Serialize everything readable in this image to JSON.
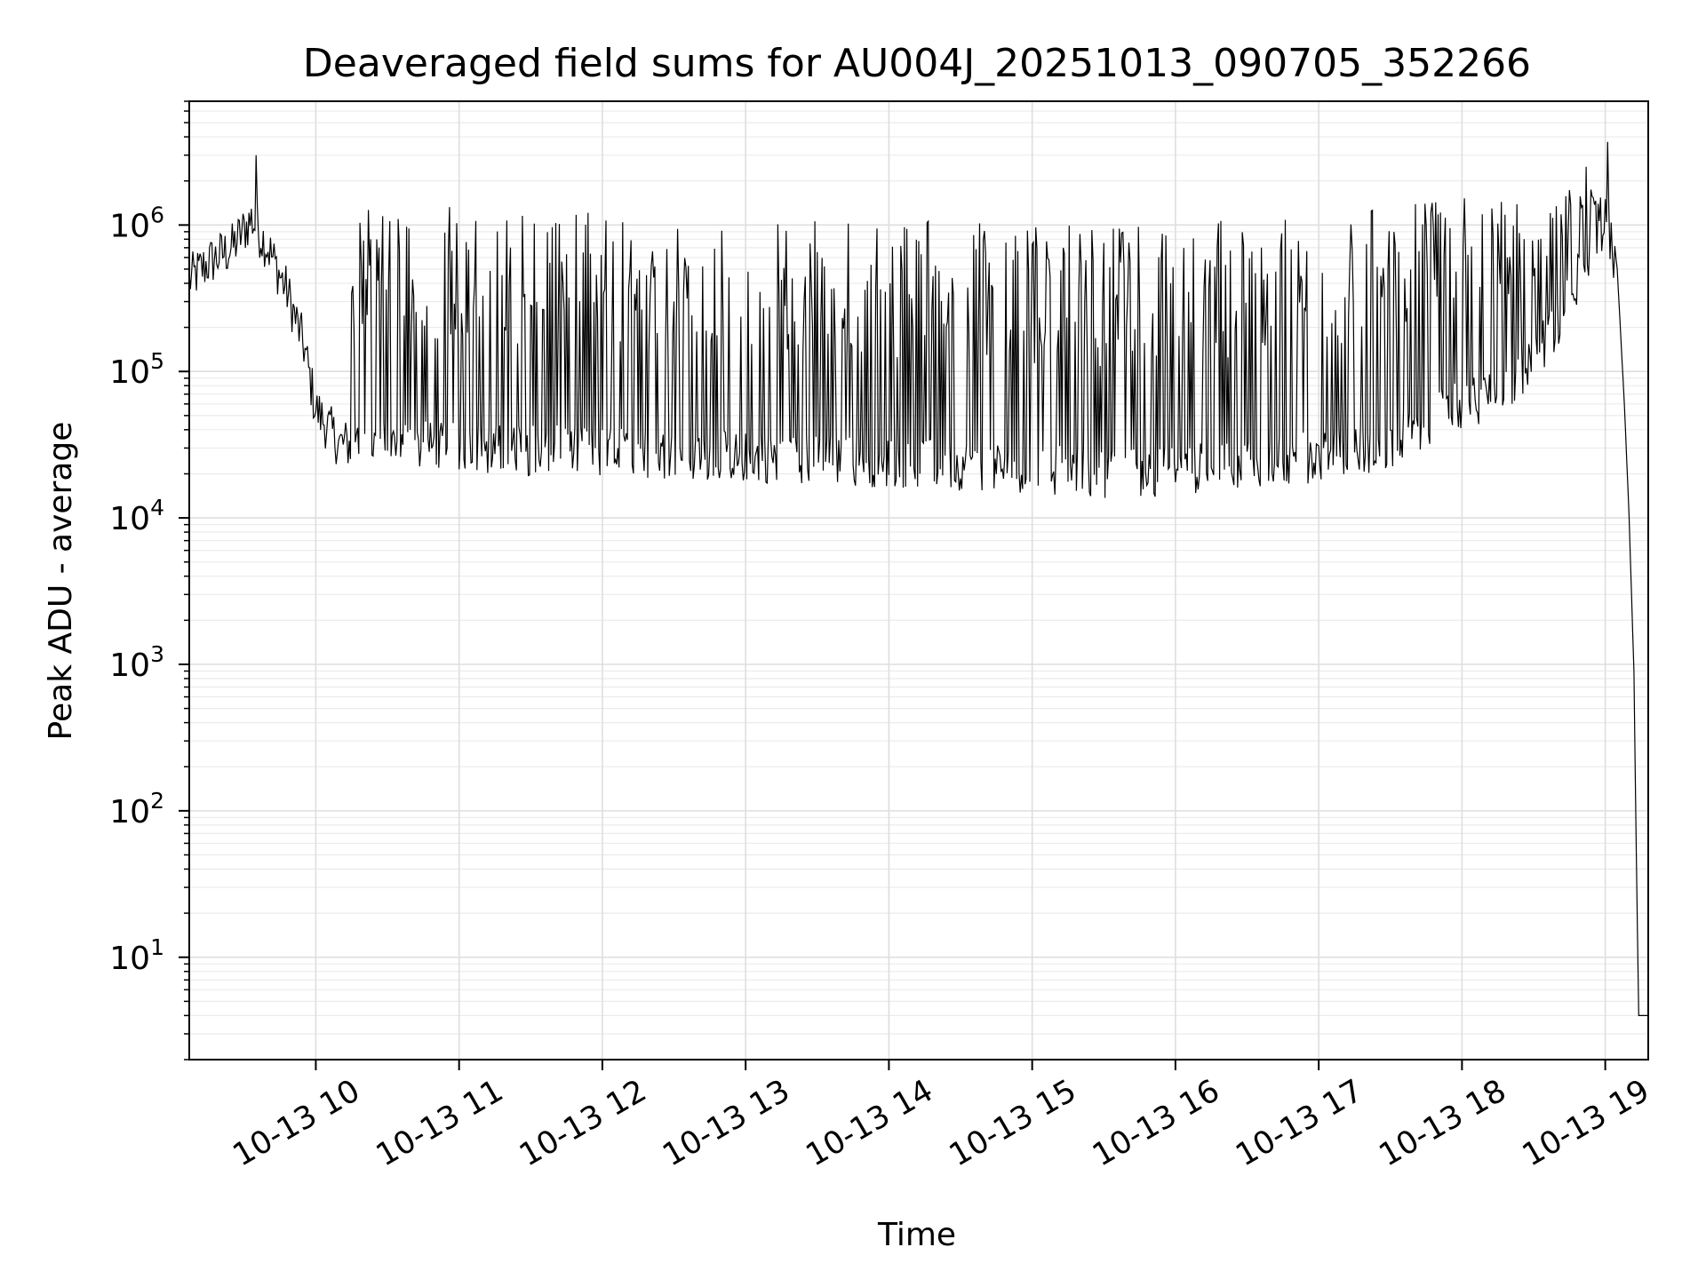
{
  "chart_data": {
    "type": "line",
    "title": "Deaveraged field sums for AU004J_20251013_090705_352266",
    "xlabel": "Time",
    "ylabel": "Peak ADU - average",
    "yscale": "log",
    "ylim": [
      2,
      7000000
    ],
    "xlim": [
      "2025-10-13 09:07",
      "2025-10-13 19:18"
    ],
    "grid": true,
    "line_color": "#000000",
    "xticks": [
      {
        "label": "10-13 10",
        "time": "2025-10-13 10:00"
      },
      {
        "label": "10-13 11",
        "time": "2025-10-13 11:00"
      },
      {
        "label": "10-13 12",
        "time": "2025-10-13 12:00"
      },
      {
        "label": "10-13 13",
        "time": "2025-10-13 13:00"
      },
      {
        "label": "10-13 14",
        "time": "2025-10-13 14:00"
      },
      {
        "label": "10-13 15",
        "time": "2025-10-13 15:00"
      },
      {
        "label": "10-13 16",
        "time": "2025-10-13 16:00"
      },
      {
        "label": "10-13 17",
        "time": "2025-10-13 17:00"
      },
      {
        "label": "10-13 18",
        "time": "2025-10-13 18:00"
      },
      {
        "label": "10-13 19",
        "time": "2025-10-13 19:00"
      }
    ],
    "yticks": [
      {
        "base": "10",
        "exp": "1",
        "value": 10
      },
      {
        "base": "10",
        "exp": "2",
        "value": 100
      },
      {
        "base": "10",
        "exp": "3",
        "value": 1000
      },
      {
        "base": "10",
        "exp": "4",
        "value": 10000
      },
      {
        "base": "10",
        "exp": "5",
        "value": 100000
      },
      {
        "base": "10",
        "exp": "6",
        "value": 1000000
      }
    ],
    "series": [
      {
        "baseline": [
          [
            "2025-10-13 09:07",
            420000
          ],
          [
            "2025-10-13 09:15",
            550000
          ],
          [
            "2025-10-13 09:25",
            700000
          ],
          [
            "2025-10-13 09:33",
            1100000
          ],
          [
            "2025-10-13 09:40",
            700000
          ],
          [
            "2025-10-13 09:48",
            350000
          ],
          [
            "2025-10-13 09:55",
            150000
          ],
          [
            "2025-10-13 10:00",
            55000
          ],
          [
            "2025-10-13 10:10",
            32000
          ],
          [
            "2025-10-13 11:00",
            30000
          ],
          [
            "2025-10-13 12:00",
            28000
          ],
          [
            "2025-10-13 13:00",
            26000
          ],
          [
            "2025-10-13 14:00",
            24000
          ],
          [
            "2025-10-13 15:00",
            22000
          ],
          [
            "2025-10-13 15:30",
            20000
          ],
          [
            "2025-10-13 16:00",
            21000
          ],
          [
            "2025-10-13 16:30",
            24000
          ],
          [
            "2025-10-13 17:00",
            26000
          ],
          [
            "2025-10-13 17:30",
            32000
          ],
          [
            "2025-10-13 17:50",
            50000
          ],
          [
            "2025-10-13 18:20",
            80000
          ],
          [
            "2025-10-13 18:40",
            200000
          ],
          [
            "2025-10-13 18:50",
            500000
          ],
          [
            "2025-10-13 19:00",
            1100000
          ],
          [
            "2025-10-13 19:05",
            500000
          ],
          [
            "2025-10-13 19:08",
            60000
          ],
          [
            "2025-10-13 19:10",
            10000
          ],
          [
            "2025-10-13 19:12",
            900
          ],
          [
            "2025-10-13 19:13",
            50
          ],
          [
            "2025-10-13 19:14",
            4
          ],
          [
            "2025-10-13 19:18",
            4
          ]
        ],
        "peak_envelope": [
          [
            "2025-10-13 10:15",
            1300000
          ],
          [
            "2025-10-13 11:00",
            1350000
          ],
          [
            "2025-10-13 12:00",
            1250000
          ],
          [
            "2025-10-13 13:00",
            1150000
          ],
          [
            "2025-10-13 14:00",
            1100000
          ],
          [
            "2025-10-13 15:00",
            1000000
          ],
          [
            "2025-10-13 16:00",
            1000000
          ],
          [
            "2025-10-13 17:00",
            1250000
          ],
          [
            "2025-10-13 18:00",
            1600000
          ],
          [
            "2025-10-13 18:45",
            1800000
          ]
        ],
        "spikes": [
          [
            "2025-10-13 09:35",
            3000000
          ],
          [
            "2025-10-13 18:52",
            2500000
          ],
          [
            "2025-10-13 19:01",
            3700000
          ]
        ]
      }
    ]
  }
}
